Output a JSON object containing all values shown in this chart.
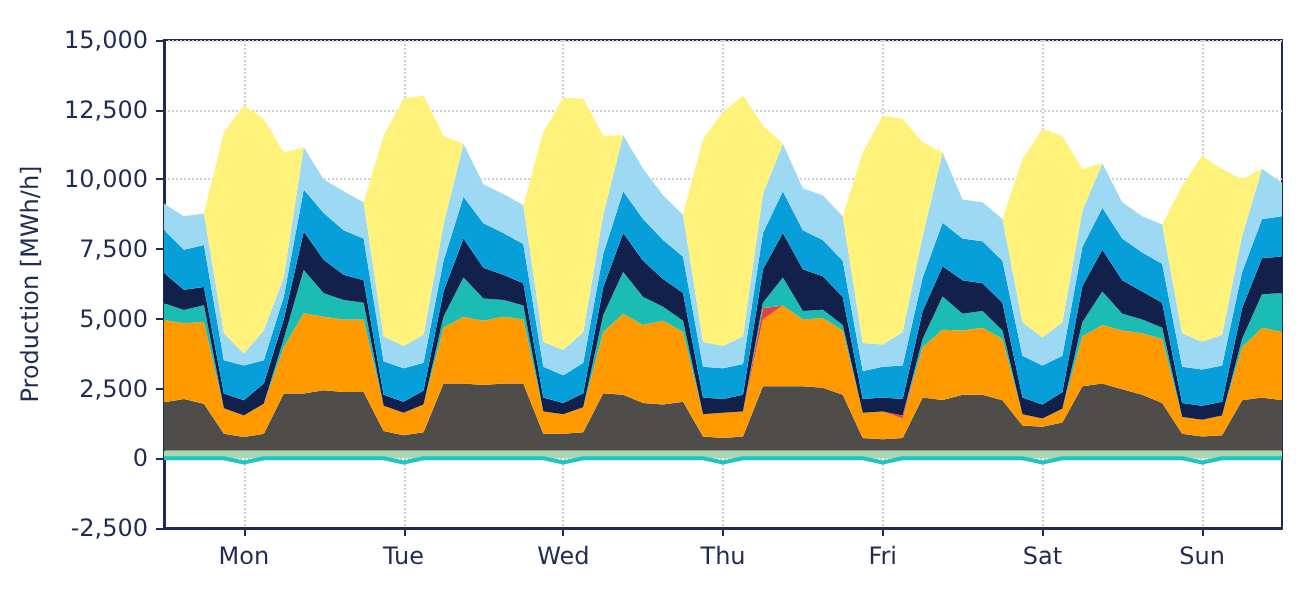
{
  "chart_data": {
    "type": "area",
    "stacked": true,
    "ylabel": "Production [MWh/h]",
    "categories": [
      null,
      null,
      null,
      null,
      "Mon",
      null,
      null,
      null,
      null,
      null,
      null,
      null,
      "Tue",
      null,
      null,
      null,
      null,
      null,
      null,
      null,
      "Wed",
      null,
      null,
      null,
      null,
      null,
      null,
      null,
      "Thu",
      null,
      null,
      null,
      null,
      null,
      null,
      null,
      "Fri",
      null,
      null,
      null,
      null,
      null,
      null,
      null,
      "Sat",
      null,
      null,
      null,
      null,
      null,
      null,
      null,
      "Sun",
      null,
      null,
      null,
      null
    ],
    "ylim": [
      -2500,
      15000
    ],
    "yticks": [
      {
        "value": -2500,
        "label": "-2,500"
      },
      0,
      {
        "value": 2500,
        "label": "2,500"
      },
      {
        "value": 5000,
        "label": "5,000"
      },
      {
        "value": 7500,
        "label": "7,500"
      },
      {
        "value": 10000,
        "label": "10,000"
      },
      {
        "value": 12500,
        "label": "12,500"
      },
      {
        "value": 15000,
        "label": "15,000"
      }
    ],
    "grid": true,
    "series": [
      {
        "type": "line",
        "color": "#1fc4c4",
        "values": [
          0,
          0,
          0,
          0,
          -150,
          0,
          0,
          0,
          0,
          0,
          0,
          0,
          -150,
          0,
          0,
          0,
          0,
          0,
          0,
          0,
          -150,
          0,
          0,
          0,
          0,
          0,
          0,
          0,
          -150,
          0,
          0,
          0,
          0,
          0,
          0,
          0,
          -150,
          0,
          0,
          0,
          0,
          0,
          0,
          0,
          -150,
          0,
          0,
          0,
          0,
          0,
          0,
          0,
          -150,
          0,
          0,
          0,
          0
        ]
      },
      {
        "color": "#a8d8b0",
        "values": [
          280,
          280,
          280,
          280,
          280,
          280,
          280,
          280,
          280,
          280,
          280,
          280,
          280,
          280,
          280,
          280,
          280,
          280,
          280,
          280,
          280,
          280,
          280,
          280,
          280,
          280,
          280,
          280,
          280,
          280,
          280,
          280,
          280,
          280,
          280,
          280,
          280,
          280,
          280,
          280,
          280,
          280,
          280,
          280,
          280,
          280,
          280,
          280,
          280,
          280,
          280,
          280,
          280,
          280,
          280,
          280,
          280
        ]
      },
      {
        "color": "#4f4d4a",
        "values": [
          1730,
          1850,
          1680,
          600,
          480,
          600,
          2040,
          2040,
          2160,
          2100,
          2100,
          700,
          550,
          650,
          2400,
          2400,
          2350,
          2400,
          2400,
          600,
          600,
          650,
          2050,
          2000,
          1700,
          1650,
          1750,
          500,
          450,
          500,
          2300,
          2300,
          2300,
          2250,
          2000,
          450,
          400,
          450,
          1900,
          1810,
          2000,
          2000,
          1800,
          900,
          850,
          1000,
          2300,
          2400,
          2200,
          2000,
          1700,
          600,
          500,
          550,
          1800,
          1900,
          1800
        ]
      },
      {
        "color": "#ff9900",
        "values": [
          2950,
          2710,
          2930,
          910,
          770,
          1080,
          1670,
          2880,
          2640,
          2600,
          2600,
          900,
          800,
          1000,
          2000,
          2400,
          2300,
          2400,
          2300,
          800,
          700,
          900,
          2200,
          2900,
          2800,
          3000,
          2500,
          800,
          900,
          900,
          2400,
          2900,
          2400,
          2500,
          2300,
          900,
          1000,
          700,
          1800,
          2520,
          2300,
          2400,
          2200,
          400,
          300,
          500,
          1800,
          2100,
          2100,
          2200,
          2300,
          600,
          600,
          700,
          1900,
          2500,
          2450
        ]
      },
      {
        "color": "#e84040",
        "values": [
          0,
          0,
          0,
          0,
          0,
          0,
          0,
          0,
          0,
          0,
          0,
          0,
          0,
          0,
          0,
          0,
          0,
          0,
          0,
          0,
          0,
          0,
          0,
          0,
          0,
          0,
          0,
          0,
          0,
          0,
          400,
          0,
          0,
          0,
          0,
          0,
          0,
          100,
          0,
          0,
          0,
          0,
          0,
          0,
          0,
          0,
          0,
          0,
          0,
          0,
          0,
          0,
          0,
          0,
          0,
          0,
          0
        ]
      },
      {
        "color": "#1abcb4",
        "values": [
          600,
          480,
          600,
          0,
          0,
          0,
          300,
          1550,
          840,
          700,
          600,
          0,
          0,
          0,
          400,
          1400,
          800,
          600,
          500,
          0,
          0,
          0,
          600,
          1500,
          1000,
          500,
          400,
          0,
          0,
          0,
          200,
          1000,
          300,
          300,
          200,
          0,
          0,
          0,
          300,
          1190,
          600,
          600,
          300,
          0,
          0,
          0,
          500,
          1200,
          600,
          500,
          400,
          0,
          0,
          0,
          300,
          1200,
          1390
        ]
      },
      {
        "color": "#12214b",
        "values": [
          1080,
          720,
          650,
          530,
          550,
          720,
          700,
          1380,
          1200,
          900,
          800,
          400,
          400,
          500,
          900,
          1400,
          1100,
          900,
          800,
          500,
          400,
          500,
          1000,
          1400,
          1300,
          1000,
          1000,
          600,
          500,
          600,
          1200,
          1600,
          1500,
          1200,
          1000,
          500,
          500,
          600,
          1000,
          1090,
          1200,
          1000,
          1000,
          600,
          500,
          600,
          1300,
          1500,
          1200,
          1000,
          900,
          500,
          500,
          500,
          1100,
          1300,
          1320
        ]
      },
      {
        "color": "#079fd9",
        "values": [
          1550,
          1440,
          1510,
          1200,
          1250,
          840,
          800,
          1510,
          1680,
          1600,
          1500,
          1200,
          1200,
          1000,
          1100,
          1500,
          1600,
          1500,
          1400,
          1100,
          1000,
          1100,
          1200,
          1500,
          1500,
          1400,
          1300,
          1100,
          1100,
          1100,
          1300,
          1500,
          1400,
          1300,
          1300,
          1000,
          1100,
          1200,
          1200,
          1560,
          1500,
          1500,
          1500,
          1500,
          1400,
          1300,
          1400,
          1500,
          1500,
          1400,
          1400,
          1300,
          1300,
          1300,
          1300,
          1400,
          1440
        ]
      },
      {
        "color": "#9dd9f2",
        "values": [
          950,
          1200,
          1130,
          960,
          430,
          1070,
          700,
          1510,
          1200,
          1400,
          1300,
          900,
          800,
          1000,
          1300,
          1900,
          1400,
          1400,
          1400,
          900,
          900,
          1100,
          1400,
          2000,
          1800,
          1600,
          1500,
          900,
          800,
          1000,
          1400,
          1700,
          1500,
          1600,
          1600,
          1000,
          800,
          1200,
          1500,
          2520,
          1400,
          1400,
          1500,
          1200,
          1000,
          1200,
          1300,
          1600,
          1300,
          1300,
          1400,
          1200,
          1000,
          1100,
          1300,
          1800,
          1200
        ]
      },
      {
        "color": "#fff27a",
        "values": [
          0,
          0,
          0,
          7210,
          8890,
          7580,
          4480,
          0,
          0,
          0,
          0,
          7190,
          8860,
          8580,
          3190,
          0,
          0,
          0,
          0,
          7510,
          9060,
          8360,
          2840,
          0,
          0,
          0,
          0,
          7270,
          8380,
          8630,
          2450,
          0,
          0,
          0,
          0,
          6840,
          8210,
          7640,
          3350,
          0,
          0,
          0,
          0,
          5850,
          7480,
          6690,
          1490,
          0,
          0,
          0,
          0,
          5290,
          6670,
          5940,
          2030,
          0,
          0
        ]
      }
    ]
  }
}
